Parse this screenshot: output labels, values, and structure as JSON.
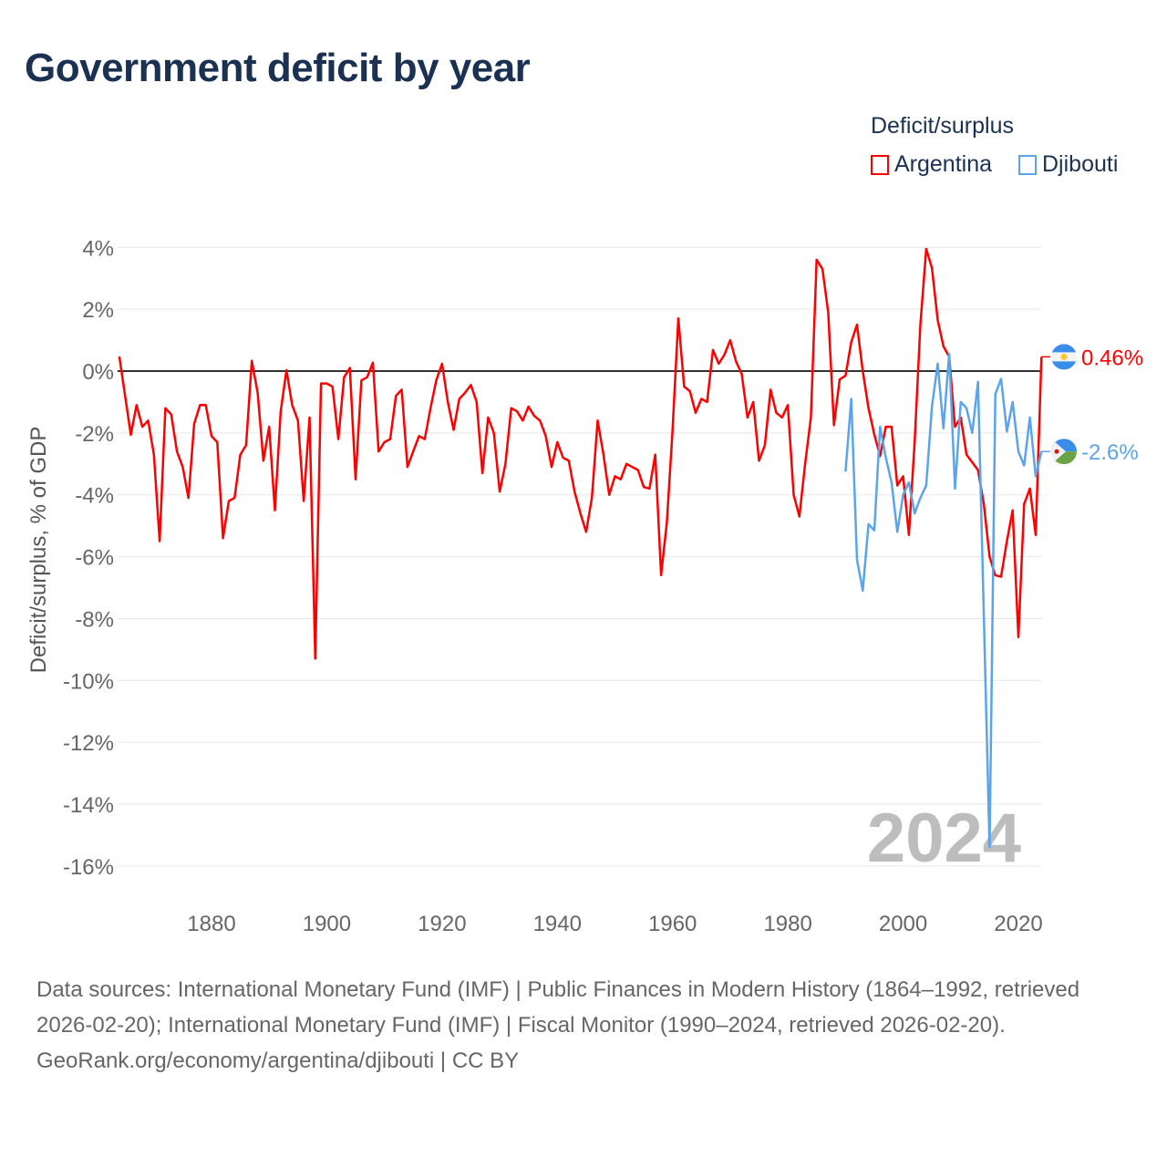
{
  "chart_data": {
    "type": "line",
    "title": "Government deficit by year",
    "ylabel": "Deficit/surplus, % of GDP",
    "xlabel": "",
    "ylim": [
      -16,
      4
    ],
    "yticks": [
      4,
      2,
      0,
      -2,
      -4,
      -6,
      -8,
      -10,
      -12,
      -14,
      -16
    ],
    "ytick_labels": [
      "4%",
      "2%",
      "0%",
      "-2%",
      "-4%",
      "-6%",
      "-8%",
      "-10%",
      "-12%",
      "-14%",
      "-16%"
    ],
    "xticks": [
      1880,
      1900,
      1920,
      1940,
      1960,
      1980,
      2000,
      2020
    ],
    "xtick_labels": [
      "1880",
      "1900",
      "1920",
      "1940",
      "1960",
      "1980",
      "2000",
      "2020"
    ],
    "xlim": [
      1864,
      2024
    ],
    "grid": true,
    "legend_title": "Deficit/surplus",
    "legend_position": "top-right",
    "year_watermark": "2024",
    "series": [
      {
        "name": "Argentina",
        "color": "#ff0000",
        "start_year": 1864,
        "end_label": "0.46%",
        "values": [
          0.47,
          -0.8,
          -2.06,
          -1.1,
          -1.8,
          -1.6,
          -2.7,
          -5.5,
          -1.2,
          -1.4,
          -2.6,
          -3.1,
          -4.1,
          -1.7,
          -1.1,
          -1.1,
          -2.1,
          -2.3,
          -5.4,
          -4.2,
          -4.1,
          -2.7,
          -2.4,
          0.33,
          -0.7,
          -2.9,
          -1.8,
          -4.5,
          -1.3,
          0.03,
          -1.1,
          -1.6,
          -4.2,
          -1.5,
          -9.3,
          -0.4,
          -0.4,
          -0.5,
          -2.2,
          -0.2,
          0.1,
          -3.5,
          -0.3,
          -0.2,
          0.27,
          -2.6,
          -2.3,
          -2.2,
          -0.8,
          -0.6,
          -3.1,
          -2.6,
          -2.1,
          -2.2,
          -1.2,
          -0.3,
          0.24,
          -1.0,
          -1.9,
          -0.9,
          -0.7,
          -0.45,
          -1.0,
          -3.3,
          -1.5,
          -2.0,
          -3.9,
          -3.0,
          -1.2,
          -1.3,
          -1.6,
          -1.15,
          -1.45,
          -1.6,
          -2.1,
          -3.1,
          -2.3,
          -2.8,
          -2.9,
          -3.9,
          -4.6,
          -5.2,
          -4.1,
          -1.6,
          -2.7,
          -4.0,
          -3.4,
          -3.5,
          -3.0,
          -3.1,
          -3.2,
          -3.75,
          -3.8,
          -2.7,
          -6.6,
          -4.9,
          -1.9,
          1.7,
          -0.5,
          -0.65,
          -1.35,
          -0.9,
          -1.0,
          0.68,
          0.24,
          0.53,
          1.0,
          0.32,
          -0.1,
          -1.5,
          -1.0,
          -2.9,
          -2.4,
          -0.6,
          -1.35,
          -1.5,
          -1.1,
          -4.0,
          -4.7,
          -3.0,
          -1.5,
          3.6,
          3.3,
          1.9,
          -1.75,
          -0.27,
          -0.15,
          0.94,
          1.5,
          0.0,
          -1.2,
          -2.05,
          -2.75,
          -1.8,
          -1.8,
          -3.7,
          -3.4,
          -5.3,
          -2.3,
          1.5,
          3.95,
          3.33,
          1.65,
          0.8,
          0.47,
          -1.8,
          -1.5,
          -2.7,
          -2.95,
          -3.2,
          -4.3,
          -6.0,
          -6.6,
          -6.65,
          -5.5,
          -4.5,
          -8.6,
          -4.3,
          -3.8,
          -5.3,
          0.46
        ]
      },
      {
        "name": "Djibouti",
        "color": "#5ba4ea",
        "start_year": 1990,
        "end_label": "-2.6%",
        "values": [
          -3.25,
          -0.9,
          -6.1,
          -7.1,
          -4.95,
          -5.15,
          -1.8,
          -2.8,
          -3.6,
          -5.2,
          -4.0,
          -3.6,
          -4.6,
          -4.1,
          -3.7,
          -1.15,
          0.24,
          -1.85,
          0.56,
          -3.8,
          -1.0,
          -1.2,
          -2.0,
          -0.35,
          -7.9,
          -15.4,
          -0.75,
          -0.25,
          -1.95,
          -1.0,
          -2.6,
          -3.05,
          -1.5,
          -3.4,
          -2.6
        ]
      }
    ]
  },
  "footer": {
    "sources": "Data sources: International Monetary Fund (IMF) | Public Finances in Modern History (1864–1992, retrieved 2026-02-20); International Monetary Fund (IMF) | Fiscal Monitor (1990–2024, retrieved 2026-02-20).",
    "credit": "GeoRank.org/economy/argentina/djibouti | CC BY"
  },
  "icons": {
    "argentina": "argentina-flag-icon",
    "djibouti": "djibouti-flag-icon"
  }
}
